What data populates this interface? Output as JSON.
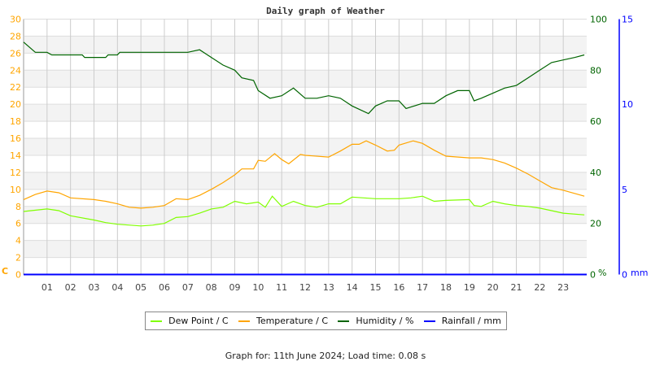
{
  "chart_data": {
    "type": "line",
    "title": "Daily graph of Weather",
    "x_unit": "hour",
    "xlim": [
      0,
      24
    ],
    "x_tick_labels": [
      "01",
      "02",
      "03",
      "04",
      "05",
      "06",
      "07",
      "08",
      "09",
      "10",
      "11",
      "12",
      "13",
      "14",
      "15",
      "16",
      "17",
      "18",
      "19",
      "20",
      "21",
      "22",
      "23"
    ],
    "grid": true,
    "axes": {
      "left": {
        "label": "C",
        "ylim": [
          0,
          30
        ],
        "ticks": [
          "0",
          "2",
          "4",
          "6",
          "8",
          "10",
          "12",
          "14",
          "16",
          "18",
          "20",
          "22",
          "24",
          "26",
          "28",
          "30"
        ],
        "color": "#ffa500"
      },
      "right1": {
        "label": "%",
        "ylim": [
          0,
          100
        ],
        "ticks": [
          "0",
          "20",
          "40",
          "60",
          "80",
          "100"
        ],
        "color": "#006400"
      },
      "right2": {
        "label": "mm",
        "ylim": [
          0,
          15
        ],
        "ticks": [
          "0",
          "5",
          "10",
          "15"
        ],
        "color": "#0000ff"
      }
    },
    "series": [
      {
        "name": "Dew Point / C",
        "axis": "left",
        "color": "#80ff00",
        "x": [
          0,
          1,
          1.5,
          2,
          3,
          3.5,
          4,
          5,
          5.5,
          6,
          6.5,
          7,
          7.5,
          8,
          8.5,
          9,
          9.5,
          10,
          10.3,
          10.6,
          11,
          11.5,
          12,
          12.5,
          13,
          13.5,
          14,
          15,
          16,
          16.5,
          17,
          17.5,
          18,
          19,
          19.2,
          19.5,
          20,
          20.5,
          21,
          21.5,
          22,
          22.5,
          23,
          23.9
        ],
        "y": [
          7.4,
          7.7,
          7.5,
          6.9,
          6.4,
          6.1,
          5.9,
          5.7,
          5.8,
          6.0,
          6.7,
          6.8,
          7.2,
          7.7,
          7.9,
          8.6,
          8.3,
          8.5,
          7.9,
          9.2,
          8.0,
          8.6,
          8.1,
          7.9,
          8.3,
          8.3,
          9.1,
          8.9,
          8.9,
          9.0,
          9.2,
          8.6,
          8.7,
          8.8,
          8.1,
          8.0,
          8.6,
          8.3,
          8.1,
          8.0,
          7.8,
          7.5,
          7.2,
          7.0
        ]
      },
      {
        "name": "Temperature / C",
        "axis": "left",
        "color": "#ffa500",
        "x": [
          0,
          0.5,
          1,
          1.5,
          2,
          3,
          3.5,
          4,
          4.5,
          5,
          5.5,
          6,
          6.5,
          7,
          7.5,
          8,
          8.5,
          9,
          9.3,
          9.8,
          10,
          10.3,
          10.7,
          11,
          11.3,
          11.8,
          12,
          13,
          13.5,
          14,
          14.3,
          14.6,
          15,
          15.5,
          15.8,
          16,
          16.6,
          17,
          17.5,
          18,
          19,
          19.5,
          20,
          20.5,
          21,
          21.5,
          22,
          22.5,
          23,
          23.9
        ],
        "y": [
          8.8,
          9.4,
          9.8,
          9.6,
          9.0,
          8.8,
          8.6,
          8.3,
          7.9,
          7.8,
          7.9,
          8.1,
          8.9,
          8.8,
          9.3,
          10.0,
          10.8,
          11.7,
          12.4,
          12.4,
          13.4,
          13.3,
          14.2,
          13.5,
          13.0,
          14.1,
          14.0,
          13.8,
          14.5,
          15.3,
          15.3,
          15.7,
          15.2,
          14.5,
          14.6,
          15.2,
          15.7,
          15.4,
          14.6,
          13.9,
          13.7,
          13.7,
          13.5,
          13.1,
          12.5,
          11.8,
          11.0,
          10.2,
          9.9,
          9.2
        ]
      },
      {
        "name": "Humidity / %",
        "axis": "right1",
        "color": "#006400",
        "x": [
          0,
          0.5,
          1,
          1.2,
          2.5,
          2.6,
          3.5,
          3.6,
          4,
          4.1,
          6.3,
          7,
          7.5,
          8,
          8.5,
          9,
          9.3,
          9.8,
          10,
          10.5,
          11,
          11.5,
          12,
          12.5,
          13,
          13.5,
          14,
          14.7,
          15,
          15.5,
          16,
          16.3,
          17,
          17.5,
          18,
          18.5,
          19,
          19.2,
          19.5,
          20,
          20.5,
          21,
          21.5,
          22,
          22.5,
          23,
          23.5,
          23.9
        ],
        "y": [
          91,
          87,
          87,
          86,
          86,
          85,
          85,
          86,
          86,
          87,
          87,
          87,
          88,
          85,
          82,
          80,
          77,
          76,
          72,
          69,
          70,
          73,
          69,
          69,
          70,
          69,
          66,
          63,
          66,
          68,
          68,
          65,
          67,
          67,
          70,
          72,
          72,
          68,
          69,
          71,
          73,
          74,
          77,
          80,
          83,
          84,
          85,
          86
        ]
      },
      {
        "name": "Rainfall / mm",
        "axis": "right2",
        "color": "#0000ff",
        "x": [
          0,
          24
        ],
        "y": [
          0,
          0
        ]
      }
    ]
  },
  "footer": "Graph for: 11th June 2024; Load time: 0.08 s"
}
